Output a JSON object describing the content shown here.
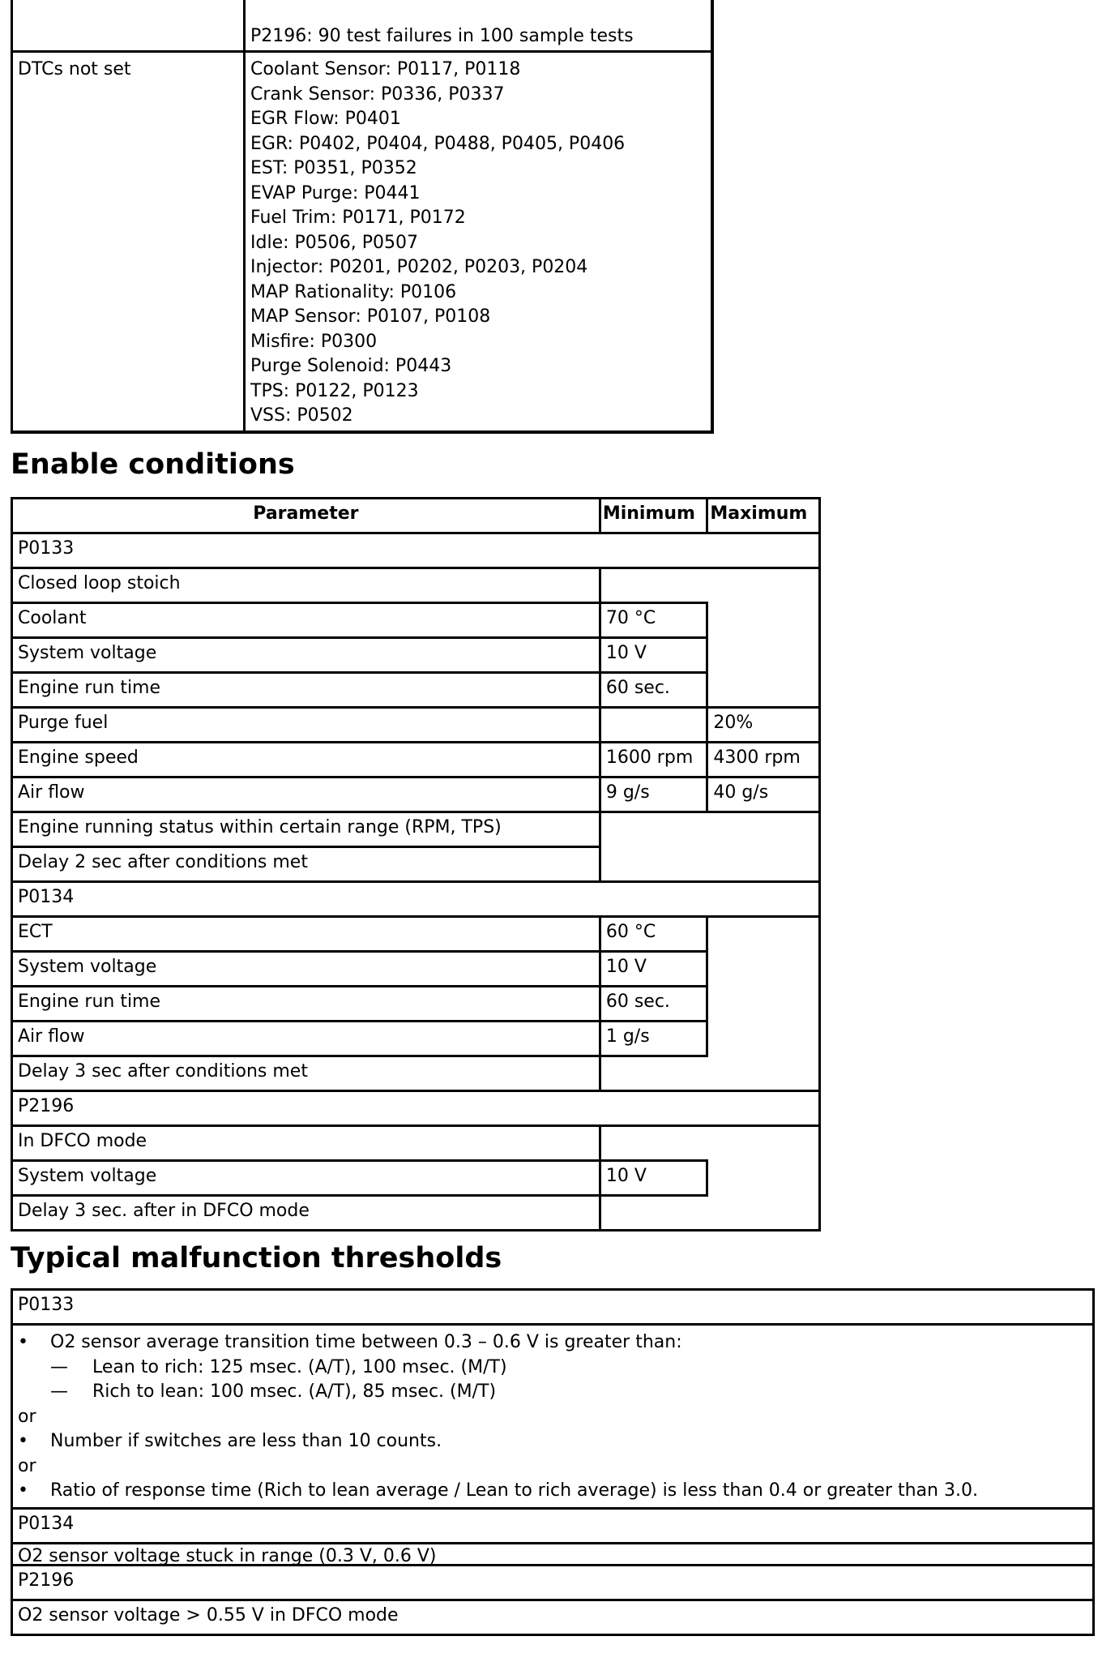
{
  "dtc_table": {
    "rows": [
      {
        "label": "",
        "lines": [
          "P2196: 90 test failures in 100 sample tests"
        ]
      },
      {
        "label": "DTCs not set",
        "lines": [
          "Coolant Sensor: P0117, P0118",
          "Crank Sensor: P0336, P0337",
          "EGR Flow: P0401",
          "EGR: P0402, P0404, P0488, P0405, P0406",
          "EST: P0351, P0352",
          "EVAP Purge: P0441",
          "Fuel Trim: P0171, P0172",
          "Idle: P0506, P0507",
          "Injector: P0201, P0202, P0203, P0204",
          "MAP Rationality: P0106",
          "MAP Sensor: P0107, P0108",
          "Misfire: P0300",
          "Purge Solenoid: P0443",
          "TPS: P0122, P0123",
          "VSS: P0502"
        ]
      }
    ]
  },
  "enable": {
    "heading": "Enable conditions",
    "headers": [
      "Parameter",
      "Minimum",
      "Maximum"
    ],
    "rows": [
      {
        "group": "P0133"
      },
      {
        "param": "Closed loop stoich",
        "min": null,
        "max": null
      },
      {
        "param": "Coolant",
        "min": "70 °C",
        "max": null
      },
      {
        "param": "System voltage",
        "min": "10 V",
        "max": null
      },
      {
        "param": "Engine run time",
        "min": "60 sec.",
        "max": null
      },
      {
        "param": "Purge fuel",
        "min": null,
        "max": "20%"
      },
      {
        "param": "Engine speed",
        "min": "1600 rpm",
        "max": "4300 rpm"
      },
      {
        "param": "Air flow",
        "min": "9 g/s",
        "max": "40 g/s"
      },
      {
        "param": "Engine running status within certain range (RPM, TPS)",
        "min": null,
        "max": null
      },
      {
        "param": "Delay 2 sec after conditions met",
        "min": null,
        "max": null
      },
      {
        "group": "P0134"
      },
      {
        "param": "ECT",
        "min": "60 °C",
        "max": null
      },
      {
        "param": "System voltage",
        "min": "10 V",
        "max": null
      },
      {
        "param": "Engine run time",
        "min": "60 sec.",
        "max": null
      },
      {
        "param": "Air flow",
        "min": "1 g/s",
        "max": null
      },
      {
        "param": "Delay 3 sec after conditions met",
        "min": null,
        "max": null
      },
      {
        "group": "P2196"
      },
      {
        "param": "In DFCO mode",
        "min": null,
        "max": null
      },
      {
        "param": "System voltage",
        "min": "10 V",
        "max": null
      },
      {
        "param": "Delay 3 sec. after in DFCO mode",
        "min": null,
        "max": null
      }
    ]
  },
  "thresholds": {
    "heading": "Typical malfunction thresholds",
    "p0133": {
      "code": "P0133",
      "items": [
        {
          "type": "bullet",
          "text": "O2 sensor average transition time between 0.3 – 0.6 V is greater than:"
        },
        {
          "type": "dash",
          "text": "Lean to rich: 125 msec. (A/T), 100 msec. (M/T)"
        },
        {
          "type": "dash",
          "text": "Rich to lean: 100 msec. (A/T), 85 msec. (M/T)"
        },
        {
          "type": "plain",
          "text": "or"
        },
        {
          "type": "bullet",
          "text": "Number if switches are less than 10 counts."
        },
        {
          "type": "plain",
          "text": "or"
        },
        {
          "type": "bullet",
          "text": "Ratio of response time (Rich to lean average / Lean to rich average) is less than 0.4 or greater than 3.0."
        }
      ]
    },
    "p0134": {
      "code": "P0134",
      "text": "O2 sensor voltage stuck in range (0.3 V, 0.6 V)"
    },
    "p2196": {
      "code": "P2196",
      "text": "O2 sensor voltage > 0.55 V in DFCO mode"
    },
    "bullet_glyph": "•",
    "dash_glyph": "—"
  }
}
